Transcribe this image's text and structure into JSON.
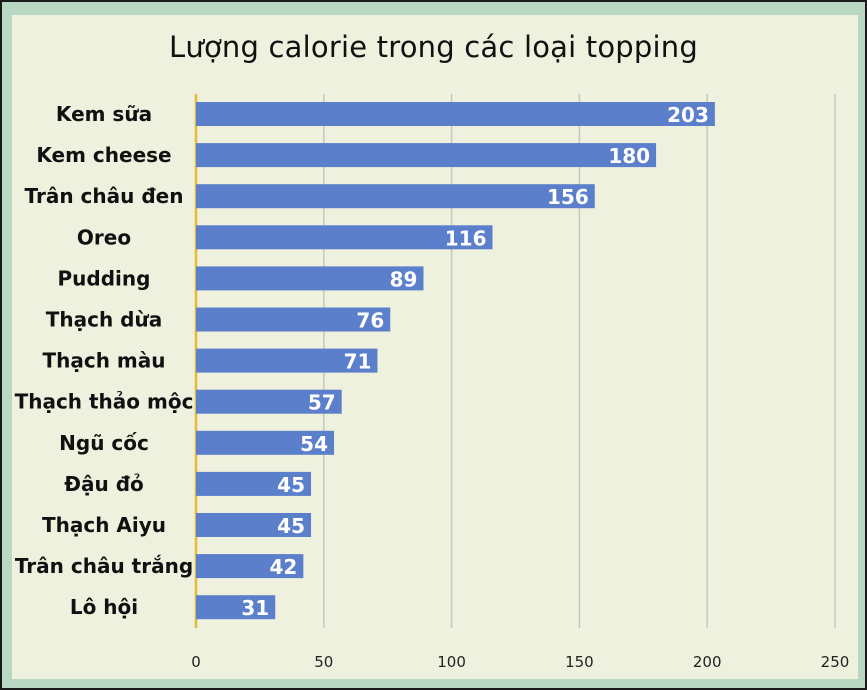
{
  "chart_data": {
    "type": "bar",
    "orientation": "horizontal",
    "title": "Lượng calorie trong các loại topping",
    "categories": [
      "Kem sữa",
      "Kem cheese",
      "Trân châu đen",
      "Oreo",
      "Pudding",
      "Thạch dừa",
      "Thạch màu",
      "Thạch thảo mộc",
      "Ngũ cốc",
      "Đậu đỏ",
      "Thạch Aiyu",
      "Trân châu trắng",
      "Lô hội"
    ],
    "values": [
      203,
      180,
      156,
      116,
      89,
      76,
      71,
      57,
      54,
      45,
      45,
      42,
      31
    ],
    "xlim": [
      0,
      250
    ],
    "x_ticks": [
      0,
      50,
      100,
      150,
      200,
      250
    ],
    "grid": true,
    "colors": {
      "bar": "#5b7fcb",
      "grid": "#c9c7b8",
      "axis": "#e8b93a",
      "background": "#eef1de",
      "frame": "#b9d8c4"
    }
  }
}
